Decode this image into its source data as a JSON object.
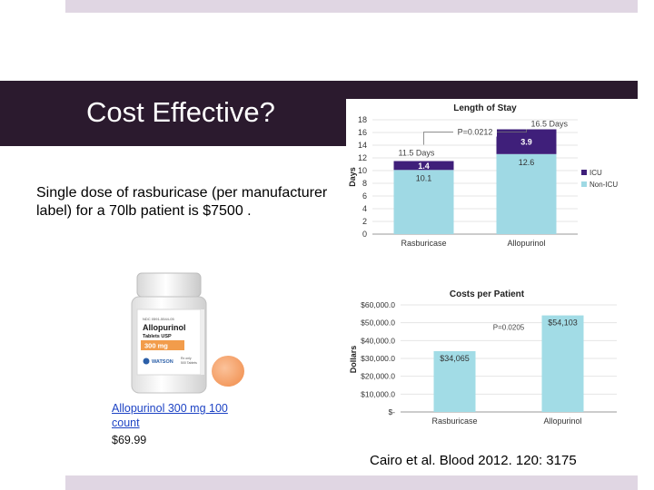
{
  "slide": {
    "title": "Cost Effective?",
    "body": "Single dose of rasburicase (per manufacturer label) for a 70lb patient is $7500 .",
    "product_link": "Allopurinol 300 mg 100 count",
    "product_price": "$69.99",
    "citation": "Cairo et al. Blood 2012. 120: 3175",
    "bottle_label": {
      "ndc": "NDC 0591-5544-05",
      "name": "Allopurinol",
      "subtitle": "Tablets USP",
      "strength": "300 mg",
      "brand": "WATSON",
      "rx": "Rx only",
      "count": "500 Tablets"
    }
  },
  "colors": {
    "title_bar": "#2b1a2e",
    "accent_bars": "#e0d6e3",
    "icu": "#3f1f7a",
    "non_icu": "#9fd9e4",
    "costs_bar": "#a2dce6",
    "pill": "#f7a571",
    "link": "#1d43c4"
  },
  "chart_data": [
    {
      "type": "bar",
      "stacked": true,
      "title": "Length of Stay",
      "ylabel": "Days",
      "xlabel": "",
      "categories": [
        "Rasburicase",
        "Allopurinol"
      ],
      "series": [
        {
          "name": "Non-ICU",
          "values": [
            10.1,
            12.6
          ],
          "color": "#9fd9e4"
        },
        {
          "name": "ICU",
          "values": [
            1.4,
            3.9
          ],
          "color": "#3f1f7a"
        }
      ],
      "totals": [
        "11.5 Days",
        "16.5 Days"
      ],
      "pvalue": "P=0.0212",
      "ylim": [
        0,
        18
      ],
      "yticks": [
        0,
        2,
        4,
        6,
        8,
        10,
        12,
        14,
        16,
        18
      ],
      "legend": "right",
      "grid": true
    },
    {
      "type": "bar",
      "title": "Costs per Patient",
      "ylabel": "Dollars",
      "xlabel": "",
      "categories": [
        "Rasburicase",
        "Allopurinol"
      ],
      "values": [
        34065,
        54103
      ],
      "value_labels": [
        "$34,065",
        "$54,103"
      ],
      "pvalue": "P=0.0205",
      "ylim": [
        0,
        60000
      ],
      "yticks": [
        0,
        10000,
        20000,
        30000,
        40000,
        50000,
        60000
      ],
      "ytick_labels": [
        "$-",
        "$10,000.0",
        "$20,000.0",
        "$30,000.0",
        "$40,000.0",
        "$50,000.0",
        "$60,000.0"
      ],
      "grid": true
    }
  ]
}
